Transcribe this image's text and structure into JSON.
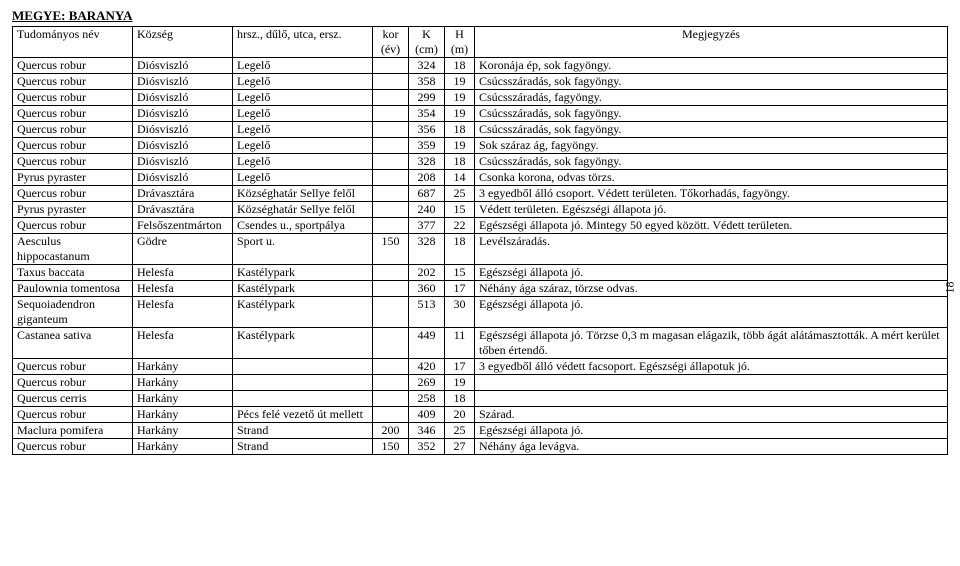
{
  "county_label": "MEGYE: BARANYA",
  "side_page": "18",
  "headers": {
    "col1_top": "Tudományos név",
    "col2_top": "Község",
    "col3_top": "hrsz., dűlő, utca, ersz.",
    "col4_top": "kor",
    "col4_sub": "(év)",
    "col5_top": "K",
    "col5_sub": "(cm)",
    "col6_top": "H",
    "col6_sub": "(m)",
    "col7_top": "Megjegyzés"
  },
  "rows": [
    {
      "c1": "Quercus robur",
      "c2": "Diósviszló",
      "c3": "Legelő",
      "c4": "",
      "c5": "324",
      "c6": "18",
      "c7": "Koronája ép, sok fagyöngy."
    },
    {
      "c1": "Quercus robur",
      "c2": "Diósviszló",
      "c3": "Legelő",
      "c4": "",
      "c5": "358",
      "c6": "19",
      "c7": "Csúcsszáradás, sok fagyöngy."
    },
    {
      "c1": "Quercus robur",
      "c2": "Diósviszló",
      "c3": "Legelő",
      "c4": "",
      "c5": "299",
      "c6": "19",
      "c7": "Csúcsszáradás, fagyöngy."
    },
    {
      "c1": "Quercus robur",
      "c2": "Diósviszló",
      "c3": "Legelő",
      "c4": "",
      "c5": "354",
      "c6": "19",
      "c7": "Csúcsszáradás, sok fagyöngy."
    },
    {
      "c1": "Quercus robur",
      "c2": "Diósviszló",
      "c3": "Legelő",
      "c4": "",
      "c5": "356",
      "c6": "18",
      "c7": "Csúcsszáradás, sok fagyöngy."
    },
    {
      "c1": "Quercus robur",
      "c2": "Diósviszló",
      "c3": "Legelő",
      "c4": "",
      "c5": "359",
      "c6": "19",
      "c7": "Sok száraz ág, fagyöngy."
    },
    {
      "c1": "Quercus robur",
      "c2": "Diósviszló",
      "c3": "Legelő",
      "c4": "",
      "c5": "328",
      "c6": "18",
      "c7": "Csúcsszáradás, sok fagyöngy."
    },
    {
      "c1": "Pyrus pyraster",
      "c2": "Diósviszló",
      "c3": "Legelő",
      "c4": "",
      "c5": "208",
      "c6": "14",
      "c7": "Csonka korona, odvas törzs."
    },
    {
      "c1": "Quercus robur",
      "c2": "Drávasztára",
      "c3": "Községhatár Sellye felől",
      "c4": "",
      "c5": "687",
      "c6": "25",
      "c7": "3 egyedből álló csoport. Védett területen. Tőkorhadás, fagyöngy."
    },
    {
      "c1": "Pyrus pyraster",
      "c2": "Drávasztára",
      "c3": "Községhatár Sellye felől",
      "c4": "",
      "c5": "240",
      "c6": "15",
      "c7": "Védett területen. Egészségi állapota jó."
    },
    {
      "c1": "Quercus robur",
      "c2": "Felsőszentmárton",
      "c3": "Csendes u., sportpálya",
      "c4": "",
      "c5": "377",
      "c6": "22",
      "c7": "Egészségi állapota jó. Mintegy 50 egyed között. Védett területen."
    },
    {
      "c1": "Aesculus hippocastanum",
      "c2": "Gödre",
      "c3": "Sport u.",
      "c4": "150",
      "c5": "328",
      "c6": "18",
      "c7": "Levélszáradás."
    },
    {
      "c1": "Taxus baccata",
      "c2": "Helesfa",
      "c3": "Kastélypark",
      "c4": "",
      "c5": "202",
      "c6": "15",
      "c7": "Egészségi állapota jó."
    },
    {
      "c1": "Paulownia tomentosa",
      "c2": "Helesfa",
      "c3": "Kastélypark",
      "c4": "",
      "c5": "360",
      "c6": "17",
      "c7": "Néhány ága száraz, törzse odvas."
    },
    {
      "c1": "Sequoiadendron giganteum",
      "c2": "Helesfa",
      "c3": "Kastélypark",
      "c4": "",
      "c5": "513",
      "c6": "30",
      "c7": "Egészségi állapota jó."
    },
    {
      "c1": "Castanea sativa",
      "c2": "Helesfa",
      "c3": "Kastélypark",
      "c4": "",
      "c5": "449",
      "c6": "11",
      "c7": "Egészségi állapota jó. Törzse 0,3 m magasan elágazik, több ágát alátámasztották. A mért kerület tőben értendő."
    },
    {
      "c1": "Quercus robur",
      "c2": "Harkány",
      "c3": "",
      "c4": "",
      "c5": "420",
      "c6": "17",
      "c7": "3 egyedből álló védett facsoport. Egészségi állapotuk jó."
    },
    {
      "c1": "Quercus robur",
      "c2": "Harkány",
      "c3": "",
      "c4": "",
      "c5": "269",
      "c6": "19",
      "c7": ""
    },
    {
      "c1": "Quercus cerris",
      "c2": "Harkány",
      "c3": "",
      "c4": "",
      "c5": "258",
      "c6": "18",
      "c7": ""
    },
    {
      "c1": "Quercus robur",
      "c2": "Harkány",
      "c3": "Pécs felé vezető út mellett",
      "c4": "",
      "c5": "409",
      "c6": "20",
      "c7": "Szárad."
    },
    {
      "c1": "Maclura pomifera",
      "c2": "Harkány",
      "c3": "Strand",
      "c4": "200",
      "c5": "346",
      "c6": "25",
      "c7": "Egészségi állapota jó."
    },
    {
      "c1": "Quercus robur",
      "c2": "Harkány",
      "c3": "Strand",
      "c4": "150",
      "c5": "352",
      "c6": "27",
      "c7": "Néhány ága levágva."
    }
  ]
}
